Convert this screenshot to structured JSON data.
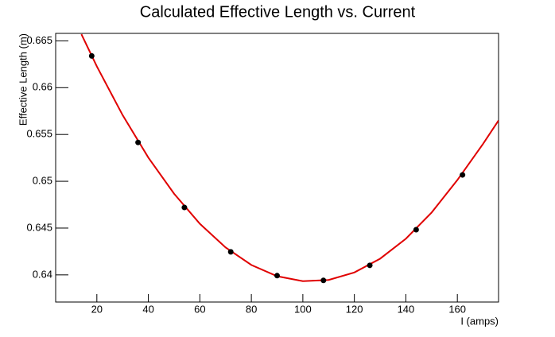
{
  "chart_data": {
    "type": "scatter",
    "title": "Calculated Effective Length vs. Current",
    "x_label": "I (amps)",
    "y_label": "Effective Length (m)",
    "x": [
      18,
      36,
      54,
      72,
      90,
      108,
      126,
      144,
      162
    ],
    "values": [
      0.66339,
      0.65415,
      0.6472,
      0.64246,
      0.63992,
      0.63941,
      0.64102,
      0.64483,
      0.65068
    ],
    "color": "#000000",
    "fit": {
      "color": "#e00000",
      "x": [
        14,
        20,
        30,
        40,
        50,
        60,
        70,
        80,
        90,
        100,
        110,
        120,
        130,
        140,
        150,
        160,
        170,
        176
      ],
      "values": [
        0.66571,
        0.66227,
        0.65707,
        0.65253,
        0.64867,
        0.64546,
        0.64293,
        0.64106,
        0.63986,
        0.63933,
        0.63946,
        0.64026,
        0.64173,
        0.64386,
        0.64666,
        0.65013,
        0.654,
        0.6565
      ]
    },
    "xlim": [
      4,
      176
    ],
    "ylim": [
      0.6371,
      0.6658
    ],
    "xticks": [
      20,
      40,
      60,
      80,
      100,
      120,
      140,
      160
    ],
    "yticks": [
      0.64,
      0.645,
      0.65,
      0.655,
      0.66,
      0.665
    ]
  }
}
